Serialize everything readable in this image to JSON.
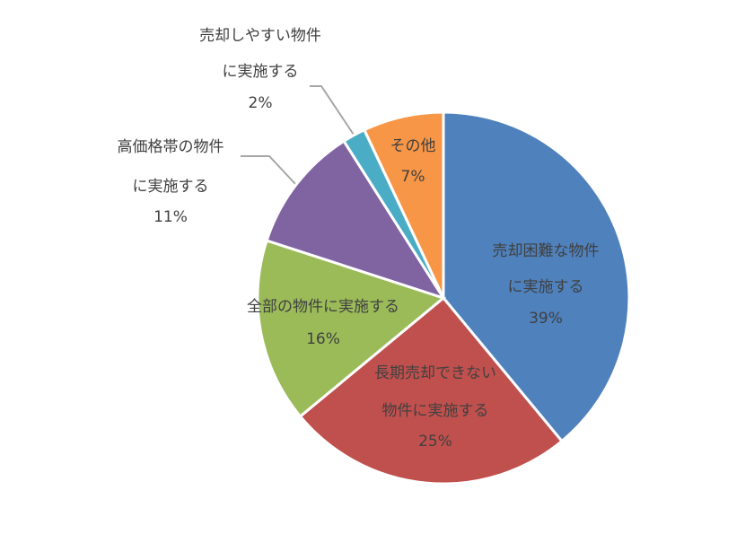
{
  "chart_data": {
    "type": "pie",
    "categories": [
      [
        "売却困難な物件",
        "に実施する"
      ],
      [
        "長期売却できない",
        "物件に実施する"
      ],
      [
        "全部の物件に実施する"
      ],
      [
        "高価格帯の物件",
        "に実施する"
      ],
      [
        "売却しやすい物件",
        "に実施する"
      ],
      [
        "その他"
      ]
    ],
    "values": [
      39,
      25,
      16,
      11,
      2,
      7
    ],
    "value_labels": [
      "39%",
      "25%",
      "16%",
      "11%",
      "2%",
      "7%"
    ],
    "colors": [
      "#4f81bd",
      "#c0504d",
      "#9bbb59",
      "#8064a2",
      "#4bacc6",
      "#f79646"
    ]
  }
}
